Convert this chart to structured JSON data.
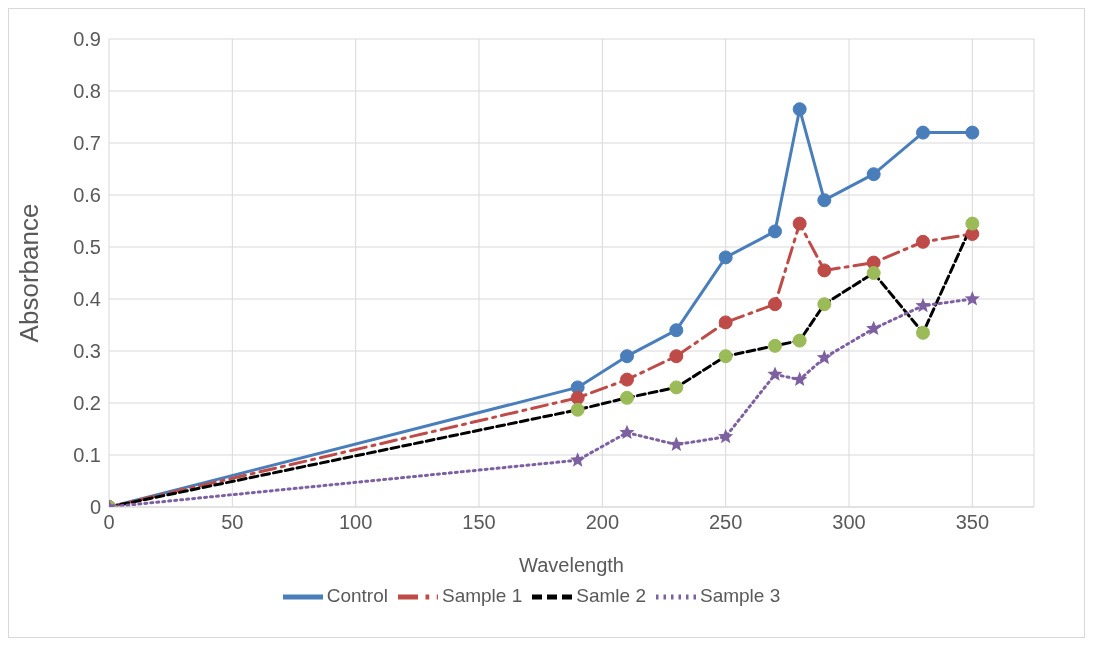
{
  "chart_data": {
    "type": "line",
    "xlabel": "Wavelength",
    "ylabel": "Absorbance",
    "x": [
      0,
      190,
      210,
      230,
      250,
      270,
      280,
      290,
      310,
      330,
      350
    ],
    "series": [
      {
        "name": "Control",
        "color": "#4a7ebb",
        "line_style": "solid",
        "marker": "circle",
        "values": [
          0,
          0.23,
          0.29,
          0.34,
          0.48,
          0.53,
          0.765,
          0.59,
          0.64,
          0.72,
          0.72
        ]
      },
      {
        "name": "Sample 1",
        "color": "#be4b48",
        "line_style": "dashdot",
        "marker": "circle",
        "values": [
          0,
          0.21,
          0.245,
          0.29,
          0.355,
          0.39,
          0.545,
          0.455,
          0.47,
          0.51,
          0.525
        ]
      },
      {
        "name": "Samle 2",
        "color": "#000000",
        "colors": [
          "#9bbb59",
          "#9bbb59",
          "#9bbb59",
          "#9bbb59",
          "#9bbb59",
          "#9bbb59",
          "#9bbb59",
          "#9bbb59",
          "#9bbb59",
          "#9bbb59",
          "#9bbb59"
        ],
        "line_style": "dashed",
        "marker": "circle",
        "values": [
          0,
          0.187,
          0.21,
          0.23,
          0.29,
          0.31,
          0.32,
          0.39,
          0.45,
          0.335,
          0.545
        ]
      },
      {
        "name": "Sample 3",
        "color": "#7d60a0",
        "line_style": "dotted",
        "marker": "star",
        "values": [
          0,
          0.09,
          0.143,
          0.12,
          0.135,
          0.255,
          0.245,
          0.287,
          0.343,
          0.387,
          0.4
        ]
      }
    ],
    "xlim": [
      0,
      375
    ],
    "xticks": [
      0,
      50,
      100,
      150,
      200,
      250,
      300,
      350
    ],
    "ylim": [
      0,
      0.9
    ],
    "yticks": [
      0,
      0.1,
      0.2,
      0.3,
      0.4,
      0.5,
      0.6,
      0.7,
      0.8,
      0.9
    ],
    "grid": true,
    "legend": "bottom"
  }
}
